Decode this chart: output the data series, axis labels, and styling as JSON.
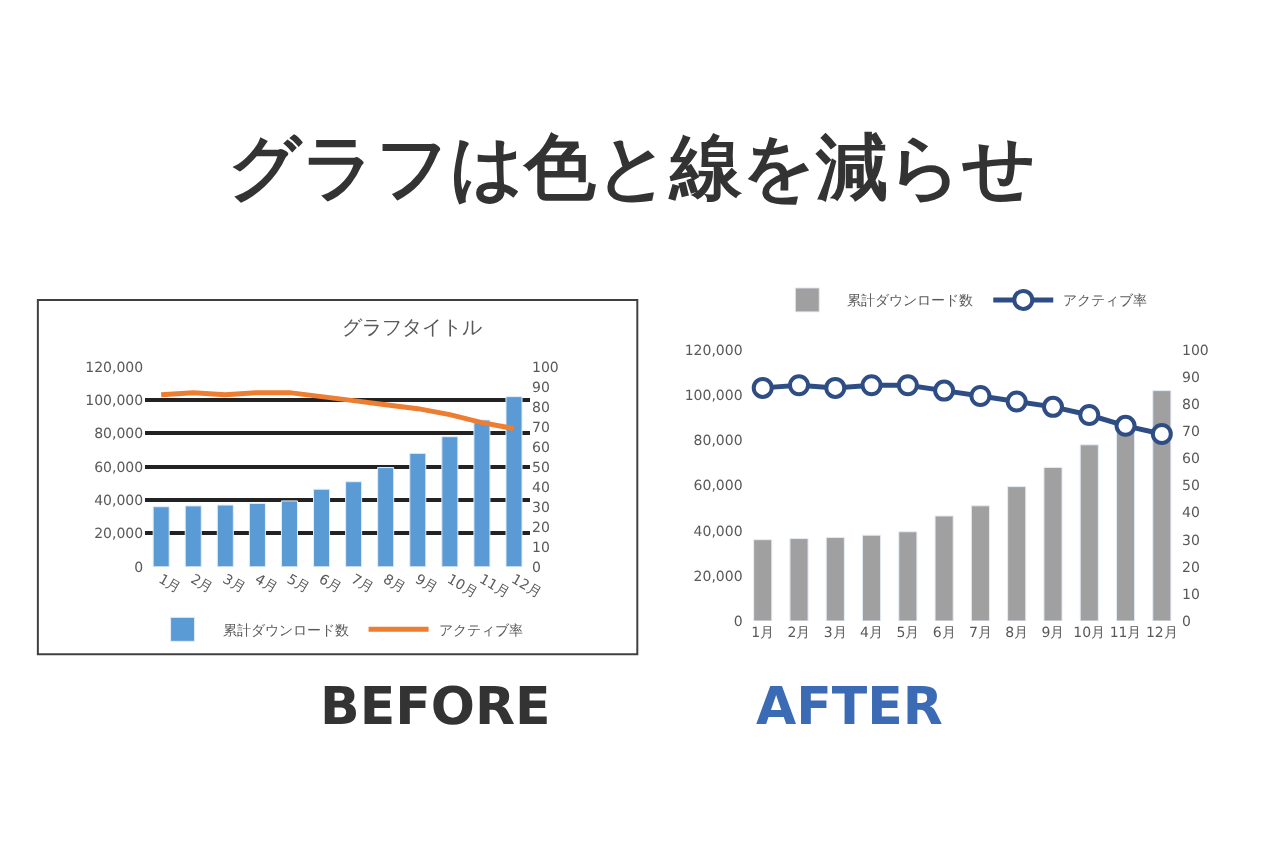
{
  "chart_data": [
    {
      "type": "other",
      "title": "グラフは色と線を減らせ"
    },
    {
      "type": "bar",
      "title": "グラフタイトル",
      "annotations": [
        "BEFORE"
      ],
      "categories": [
        "1月",
        "2月",
        "3月",
        "4月",
        "5月",
        "6月",
        "7月",
        "8月",
        "9月",
        "10月",
        "11月",
        "12月"
      ],
      "series": [
        {
          "name": "累計ダウンロード数",
          "type": "bar",
          "color": "#5b9bd5",
          "values": [
            36000,
            36500,
            37000,
            38000,
            39500,
            46500,
            51000,
            59500,
            68000,
            78000,
            88000,
            102000
          ]
        },
        {
          "name": "アクティブ率",
          "type": "line",
          "axis": "y2",
          "color": "#ed7d31",
          "marker": "none",
          "values": [
            86,
            87,
            86,
            87,
            87,
            85,
            83,
            81,
            79,
            76,
            72,
            69
          ]
        }
      ],
      "ylim": [
        0,
        120000
      ],
      "yticks": [
        0,
        {
          "value": 20000,
          "label": "20,000"
        },
        {
          "value": 40000,
          "label": "40,000"
        },
        {
          "value": 60000,
          "label": "60,000"
        },
        {
          "value": 80000,
          "label": "80,000"
        },
        {
          "value": 100000,
          "label": "100,000"
        },
        {
          "value": 120000,
          "label": "120,000"
        }
      ],
      "y2lim": [
        0,
        100
      ],
      "y2ticks": [
        0,
        10,
        20,
        30,
        40,
        50,
        60,
        70,
        80,
        90,
        100
      ],
      "grid": "y",
      "legend": "bottom"
    },
    {
      "type": "bar",
      "annotations": [
        "AFTER"
      ],
      "categories": [
        "1月",
        "2月",
        "3月",
        "4月",
        "5月",
        "6月",
        "7月",
        "8月",
        "9月",
        "10月",
        "11月",
        "12月"
      ],
      "series": [
        {
          "name": "累計ダウンロード数",
          "type": "bar",
          "color": "#a0a0a0",
          "values": [
            36000,
            36500,
            37000,
            38000,
            39500,
            46500,
            51000,
            59500,
            68000,
            78000,
            88000,
            102000
          ]
        },
        {
          "name": "アクティブ率",
          "type": "line",
          "axis": "y2",
          "color": "#2f4d85",
          "marker": "circle",
          "values": [
            86,
            87,
            86,
            87,
            87,
            85,
            83,
            81,
            79,
            76,
            72,
            69
          ]
        }
      ],
      "ylim": [
        0,
        120000
      ],
      "yticks": [
        0,
        {
          "value": 20000,
          "label": "20,000"
        },
        {
          "value": 40000,
          "label": "40,000"
        },
        {
          "value": 60000,
          "label": "60,000"
        },
        {
          "value": 80000,
          "label": "80,000"
        },
        {
          "value": 100000,
          "label": "100,000"
        },
        {
          "value": 120000,
          "label": "120,000"
        }
      ],
      "y2lim": [
        0,
        100
      ],
      "y2ticks": [
        0,
        10,
        20,
        30,
        40,
        50,
        60,
        70,
        80,
        90,
        100
      ],
      "grid": false,
      "legend": "top"
    }
  ]
}
